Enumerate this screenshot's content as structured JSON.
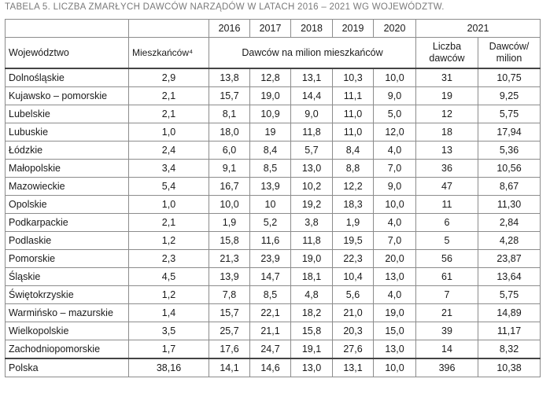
{
  "title": "TABELA 5. LICZBA ZMARŁYCH DAWCÓW NARZĄDÓW W LATACH 2016 – 2021 WG WOJEWÓDZTW.",
  "header": {
    "years": [
      "2016",
      "2017",
      "2018",
      "2019",
      "2020"
    ],
    "year_2021": "2021",
    "col_region": "Województwo",
    "col_pop": "Mieszkańców⁴",
    "col_rate": "Dawców na milion mieszkańców",
    "col_count_2021": "Liczba dawców",
    "col_rate_2021": "Dawców/ milion"
  },
  "rows": [
    {
      "name": "Dolnośląskie",
      "pop": "2,9",
      "v": [
        "13,8",
        "12,8",
        "13,1",
        "10,3",
        "10,0"
      ],
      "count": "31",
      "rate": "10,75"
    },
    {
      "name": "Kujawsko – pomorskie",
      "pop": "2,1",
      "v": [
        "15,7",
        "19,0",
        "14,4",
        "11,1",
        "9,0"
      ],
      "count": "19",
      "rate": "9,25"
    },
    {
      "name": "Lubelskie",
      "pop": "2,1",
      "v": [
        "8,1",
        "10,9",
        "9,0",
        "11,0",
        "5,0"
      ],
      "count": "12",
      "rate": "5,75"
    },
    {
      "name": "Lubuskie",
      "pop": "1,0",
      "v": [
        "18,0",
        "19",
        "11,8",
        "11,0",
        "12,0"
      ],
      "count": "18",
      "rate": "17,94"
    },
    {
      "name": "Łódzkie",
      "pop": "2,4",
      "v": [
        "6,0",
        "8,4",
        "5,7",
        "8,4",
        "4,0"
      ],
      "count": "13",
      "rate": "5,36"
    },
    {
      "name": "Małopolskie",
      "pop": "3,4",
      "v": [
        "9,1",
        "8,5",
        "13,0",
        "8,8",
        "7,0"
      ],
      "count": "36",
      "rate": "10,56"
    },
    {
      "name": "Mazowieckie",
      "pop": "5,4",
      "v": [
        "16,7",
        "13,9",
        "10,2",
        "12,2",
        "9,0"
      ],
      "count": "47",
      "rate": "8,67"
    },
    {
      "name": "Opolskie",
      "pop": "1,0",
      "v": [
        "10,0",
        "10",
        "19,2",
        "18,3",
        "10,0"
      ],
      "count": "11",
      "rate": "11,30"
    },
    {
      "name": "Podkarpackie",
      "pop": "2,1",
      "v": [
        "1,9",
        "5,2",
        "3,8",
        "1,9",
        "4,0"
      ],
      "count": "6",
      "rate": "2,84"
    },
    {
      "name": "Podlaskie",
      "pop": "1,2",
      "v": [
        "15,8",
        "11,6",
        "11,8",
        "19,5",
        "7,0"
      ],
      "count": "5",
      "rate": "4,28"
    },
    {
      "name": "Pomorskie",
      "pop": "2,3",
      "v": [
        "21,3",
        "23,9",
        "19,0",
        "22,3",
        "20,0"
      ],
      "count": "56",
      "rate": "23,87"
    },
    {
      "name": "Śląskie",
      "pop": "4,5",
      "v": [
        "13,9",
        "14,7",
        "18,1",
        "10,4",
        "13,0"
      ],
      "count": "61",
      "rate": "13,64"
    },
    {
      "name": "Świętokrzyskie",
      "pop": "1,2",
      "v": [
        "7,8",
        "8,5",
        "4,8",
        "5,6",
        "4,0"
      ],
      "count": "7",
      "rate": "5,75"
    },
    {
      "name": "Warmińsko – mazurskie",
      "pop": "1,4",
      "v": [
        "15,7",
        "22,1",
        "18,2",
        "21,0",
        "19,0"
      ],
      "count": "21",
      "rate": "14,89"
    },
    {
      "name": "Wielkopolskie",
      "pop": "3,5",
      "v": [
        "25,7",
        "21,1",
        "15,8",
        "20,3",
        "15,0"
      ],
      "count": "39",
      "rate": "11,17"
    },
    {
      "name": "Zachodniopomorskie",
      "pop": "1,7",
      "v": [
        "17,6",
        "24,7",
        "19,1",
        "27,6",
        "13,0"
      ],
      "count": "14",
      "rate": "8,32"
    }
  ],
  "total": {
    "name": "Polska",
    "pop": "38,16",
    "v": [
      "14,1",
      "14,6",
      "13,0",
      "13,1",
      "10,0"
    ],
    "count": "396",
    "rate": "10,38"
  }
}
